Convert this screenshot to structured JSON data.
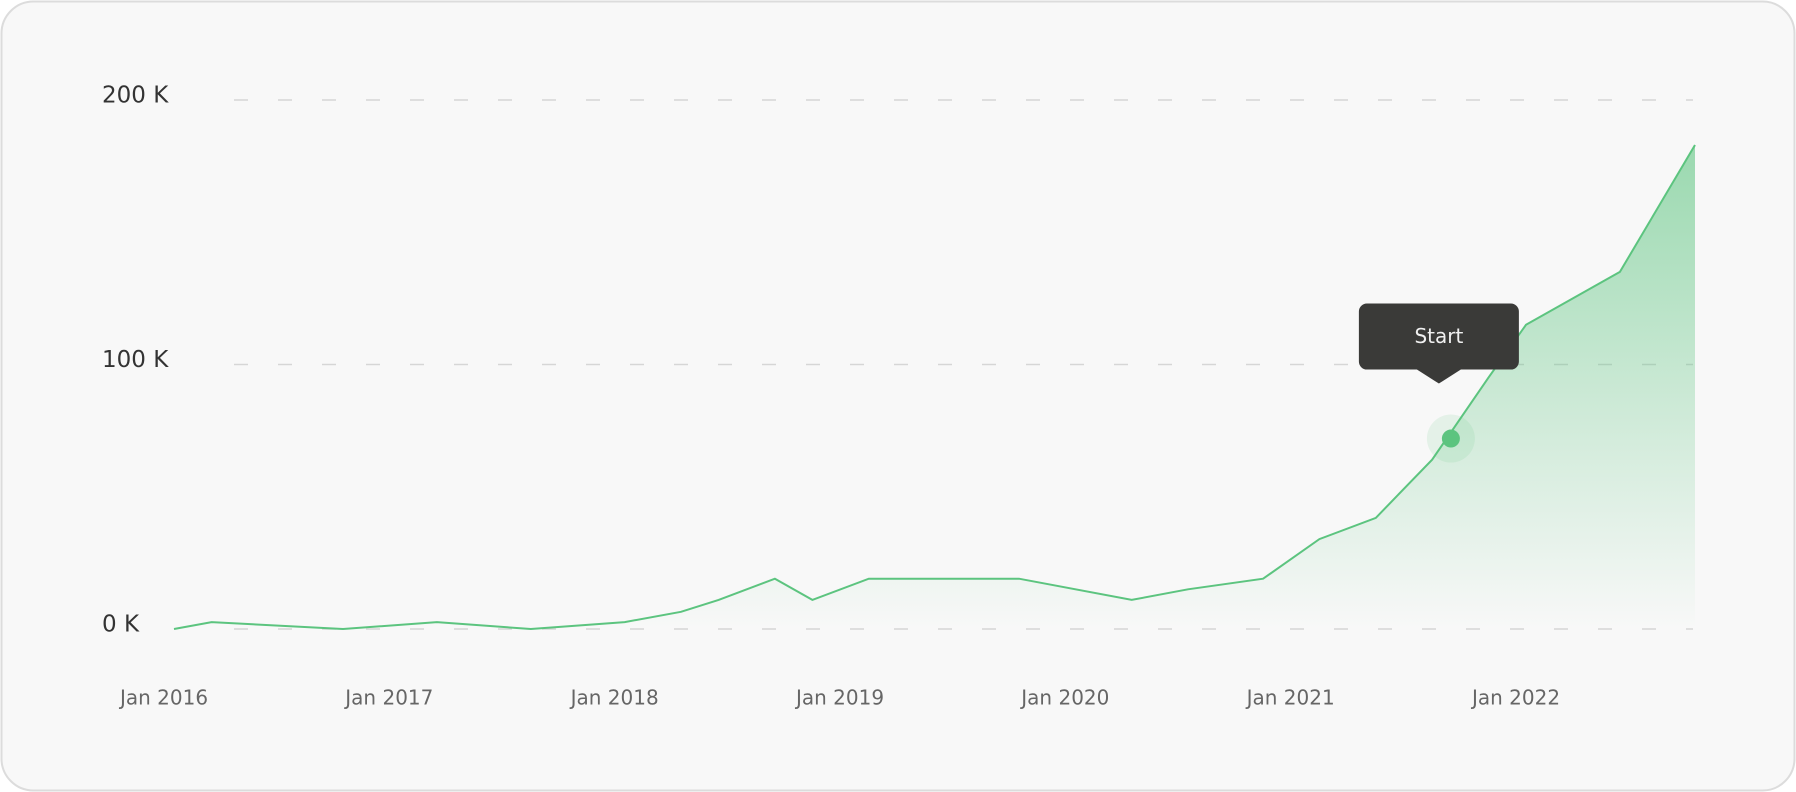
{
  "chart_data": {
    "type": "line",
    "x": [
      "2016-01",
      "2016-03",
      "2016-10",
      "2017-03",
      "2017-08",
      "2018-01",
      "2018-04",
      "2018-06",
      "2018-09",
      "2018-11",
      "2019-02",
      "2019-10",
      "2020-04",
      "2020-07",
      "2020-11",
      "2021-02",
      "2021-05",
      "2021-08",
      "2021-11",
      "2022-01",
      "2022-06",
      "2022-10"
    ],
    "values": [
      0,
      2600,
      0,
      2600,
      0,
      2600,
      6500,
      11000,
      19000,
      11000,
      19000,
      19000,
      11000,
      15000,
      19000,
      34000,
      42000,
      64000,
      95000,
      115000,
      135000,
      183000
    ],
    "color": "#5cc47f",
    "xlim": [
      "2016-01",
      "2022-10"
    ],
    "xticks": [
      {
        "value": "2016-01",
        "label": "Jan 2016"
      },
      {
        "value": "2017-01",
        "label": "Jan 2017"
      },
      {
        "value": "2018-01",
        "label": "Jan 2018"
      },
      {
        "value": "2019-01",
        "label": "Jan 2019"
      },
      {
        "value": "2020-01",
        "label": "Jan 2020"
      },
      {
        "value": "2021-01",
        "label": "Jan 2021"
      },
      {
        "value": "2022-01",
        "label": "Jan 2022"
      }
    ],
    "ylim": [
      0,
      200000
    ],
    "yticks": [
      {
        "value": 0,
        "label": "0 K"
      },
      {
        "value": 100000,
        "label": "100 K"
      },
      {
        "value": 200000,
        "label": "200 K"
      }
    ],
    "grid": true,
    "annotations": [
      {
        "x": "2021-09",
        "y": 72000,
        "label": "Start"
      }
    ]
  }
}
